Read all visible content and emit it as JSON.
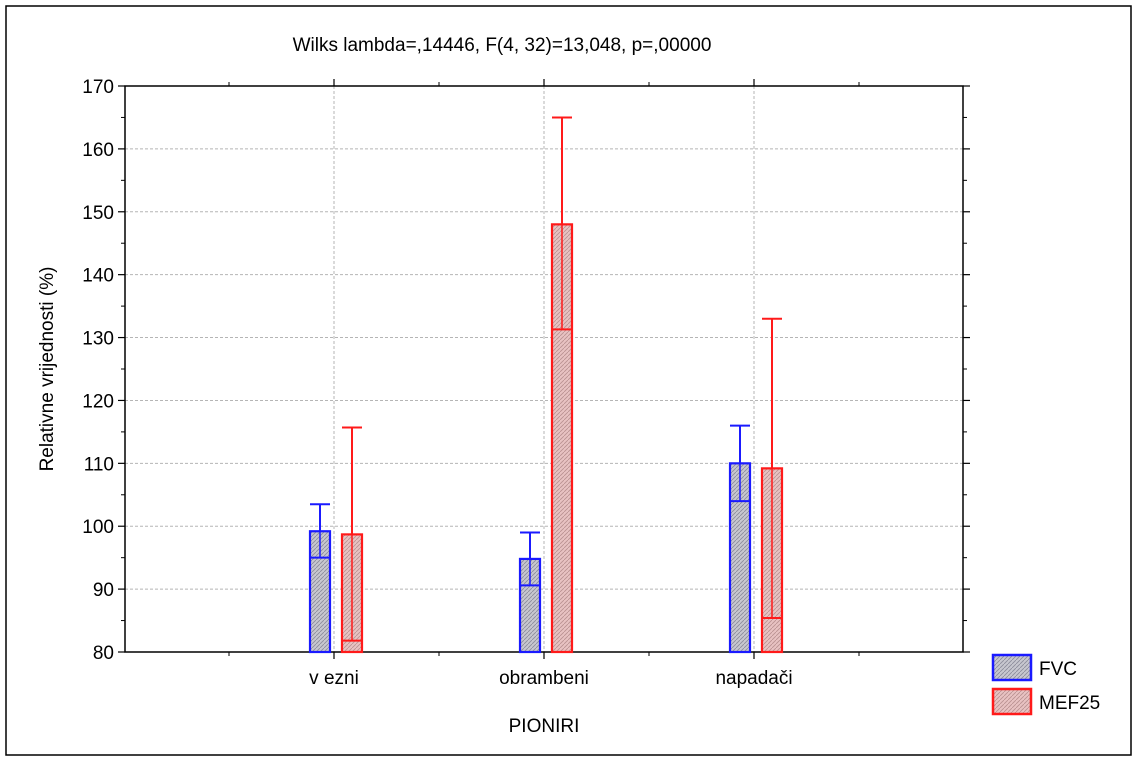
{
  "chart_data": {
    "type": "bar",
    "title": "Wilks lambda=,14446, F(4, 32)=13,048, p=,00000",
    "xlabel": "PIONIRI",
    "ylabel": "Relativne vrijednosti (%)",
    "ylim": [
      80,
      170
    ],
    "yticks": [
      "80",
      "90",
      "100",
      "110",
      "120",
      "130",
      "140",
      "150",
      "160",
      "170"
    ],
    "categories": [
      "v ezni",
      "obrambeni",
      "napadači"
    ],
    "grid": true,
    "legend_position": "bottom-right",
    "series": [
      {
        "name": "FVC",
        "color": "#1a1aff",
        "values": [
          99.2,
          94.8,
          110.0
        ],
        "ci_low": [
          95.0,
          90.6,
          104.0
        ],
        "ci_high": [
          103.5,
          99.0,
          116.0
        ]
      },
      {
        "name": "MEF25",
        "color": "#ff1a1a",
        "values": [
          98.7,
          148.0,
          109.2
        ],
        "ci_low": [
          81.8,
          131.3,
          85.4
        ],
        "ci_high": [
          115.7,
          165.0,
          133.0
        ]
      }
    ]
  }
}
